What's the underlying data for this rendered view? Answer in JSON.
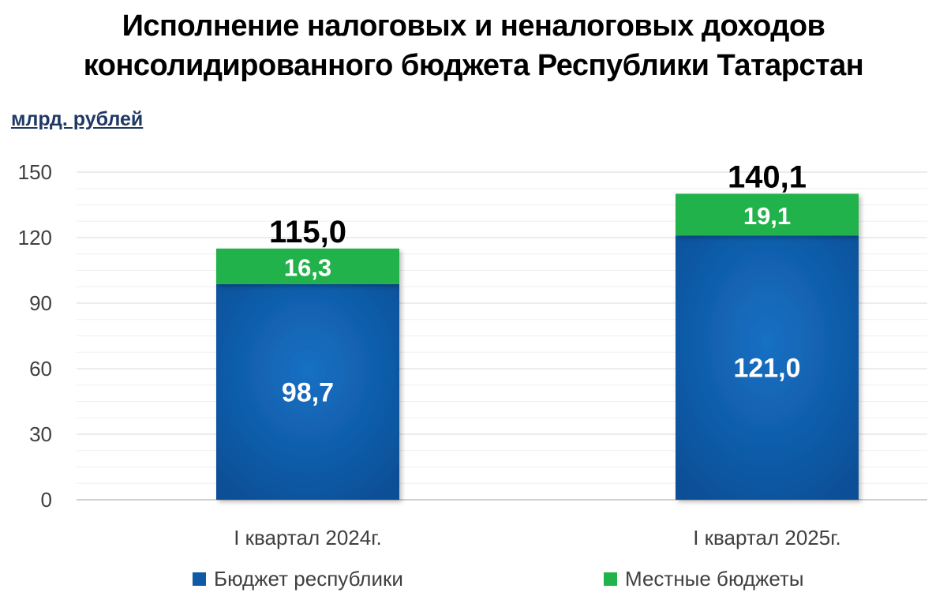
{
  "chart_data": {
    "type": "bar",
    "stacked": true,
    "title_line1": "Исполнение налоговых и неналоговых доходов",
    "title_line2": "консолидированного бюджета Республики Татарстан",
    "ylabel": "млрд. рублей",
    "categories": [
      "I квартал 2024г.",
      "I квартал 2025г."
    ],
    "series": [
      {
        "name": "Бюджет республики",
        "values": [
          98.7,
          121.0
        ],
        "labels": [
          "98,7",
          "121,0"
        ],
        "color": "#0e5aa7"
      },
      {
        "name": "Местные бюджеты",
        "values": [
          16.3,
          19.1
        ],
        "labels": [
          "16,3",
          "19,1"
        ],
        "color": "#22b24c"
      }
    ],
    "totals": [
      115.0,
      140.1
    ],
    "total_labels": [
      "115,0",
      "140,1"
    ],
    "ylim": [
      0,
      150
    ],
    "yticks": [
      0,
      30,
      60,
      90,
      120,
      150
    ],
    "grid": true,
    "legend": "bottom"
  }
}
